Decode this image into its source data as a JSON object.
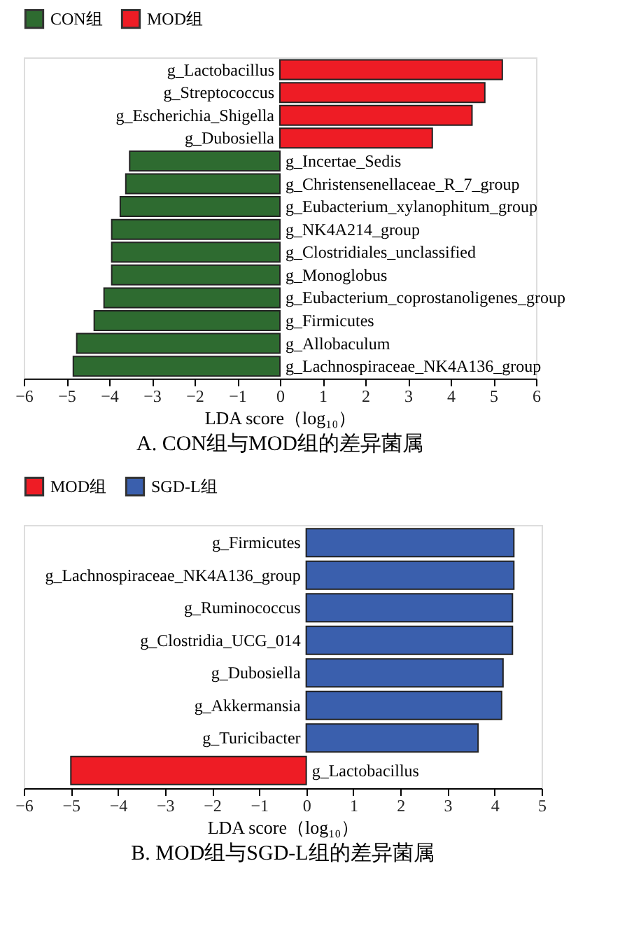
{
  "chart_data": [
    {
      "type": "bar",
      "orientation": "horizontal",
      "title": "A. CON组与MOD组的差异菌属",
      "xlabel": "LDA score（log₁₀）",
      "categories": [
        "g_Lactobacillus",
        "g_Streptococcus",
        "g_Escherichia_Shigella",
        "g_Dubosiella",
        "g_Incertae_Sedis",
        "g_Christensenellaceae_R_7_group",
        "g_Eubacterium_xylanophitum_group",
        "g_NK4A214_group",
        "g_Clostridiales_unclassified",
        "g_Monoglobus",
        "g_Eubacterium_coprostanoligenes_group",
        "g_Firmicutes",
        "g_Allobaculum",
        "g_Lachnospiraceae_NK4A136_group"
      ],
      "series": [
        {
          "name": "CON组",
          "color": "#2e6b30",
          "values": [
            null,
            null,
            null,
            null,
            -3.52,
            -3.61,
            -3.74,
            -3.94,
            -3.94,
            -3.94,
            -4.12,
            -4.35,
            -4.76,
            -4.84
          ]
        },
        {
          "name": "MOD组",
          "color": "#ee1c25",
          "values": [
            5.21,
            4.8,
            4.5,
            3.57,
            null,
            null,
            null,
            null,
            null,
            null,
            null,
            null,
            null,
            null
          ]
        }
      ],
      "xlim": [
        -6,
        6
      ],
      "xticks": [
        -6,
        -5,
        -4,
        -3,
        -2,
        -1,
        0,
        1,
        2,
        3,
        4,
        5,
        6
      ],
      "legend": "top left",
      "grid": false
    },
    {
      "type": "bar",
      "orientation": "horizontal",
      "title": "B. MOD组与SGD-L组的差异菌属",
      "xlabel": "LDA score（log₁₀）",
      "categories": [
        "g_Firmicutes",
        "g_Lachnospiraceae_NK4A136_group",
        "g_Ruminococcus",
        "g_Clostridia_UCG_014",
        "g_Dubosiella",
        "g_Akkermansia",
        "g_Turicibacter",
        "g_Lactobacillus"
      ],
      "series": [
        {
          "name": "MOD组",
          "color": "#ee1c25",
          "values": [
            null,
            null,
            null,
            null,
            null,
            null,
            null,
            -5.0
          ]
        },
        {
          "name": "SGD-L组",
          "color": "#3a5fad",
          "values": [
            4.41,
            4.41,
            4.38,
            4.38,
            4.18,
            4.15,
            3.65,
            null
          ]
        }
      ],
      "xlim": [
        -6,
        5
      ],
      "xticks": [
        -6,
        -5,
        -4,
        -3,
        -2,
        -1,
        0,
        1,
        2,
        3,
        4,
        5
      ],
      "legend": "top left",
      "grid": false
    }
  ]
}
